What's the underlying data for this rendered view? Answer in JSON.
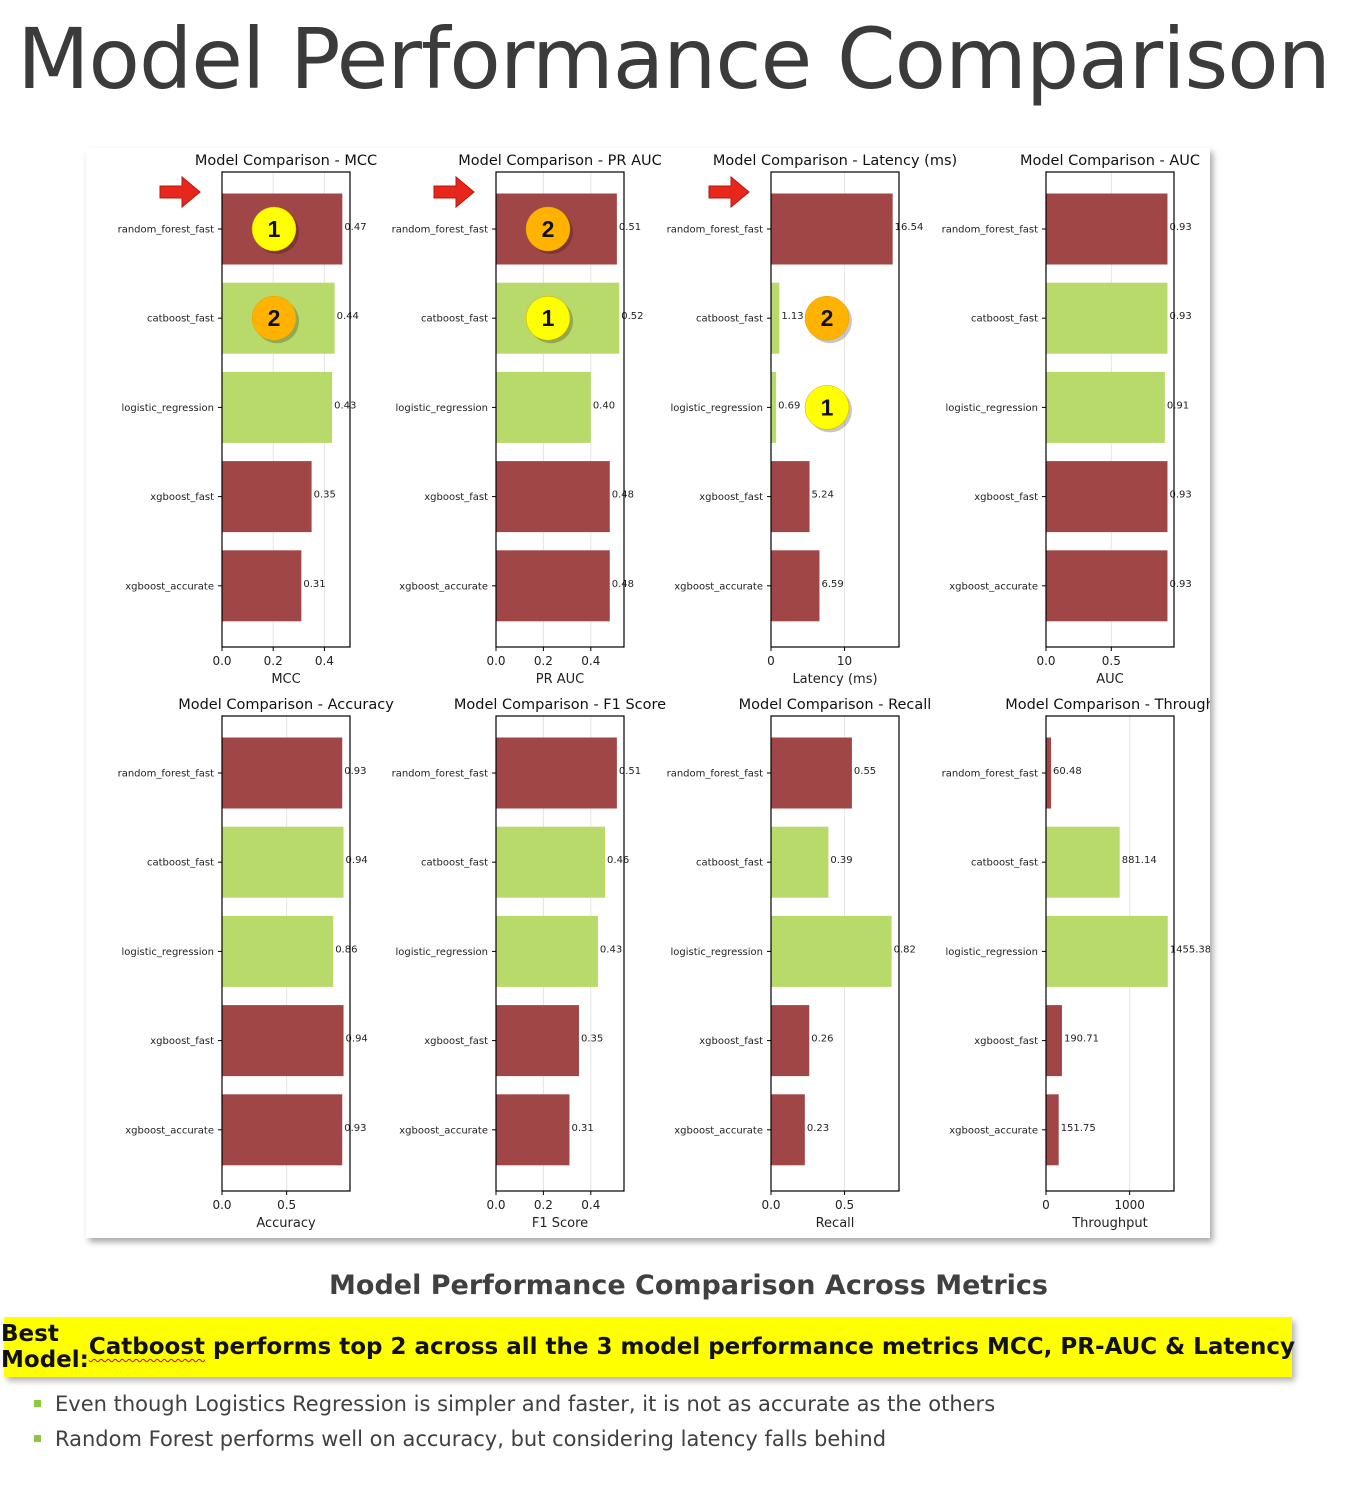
{
  "slide": {
    "title": "Model Performance Comparison",
    "caption": "Model Performance Comparison Across Metrics",
    "banner": {
      "prefix": "Best Model: ",
      "highlight": "Catboost",
      "suffix": " performs top 2 across all the 3 model performance metrics MCC, PR-AUC & Latency"
    },
    "bullets": [
      "Even though Logistics Regression is simpler and faster, it is not as accurate as the others",
      "Random Forest performs well on accuracy, but considering latency falls behind"
    ]
  },
  "colors": {
    "red_bar": "#a14646",
    "green_bar": "#b8da6b",
    "arrow": "#e8261c",
    "badge_yellow": "#ffff00",
    "badge_orange": "#ffb300"
  },
  "chart_data": [
    {
      "type": "bar",
      "orientation": "horizontal",
      "title": "Model Comparison - MCC",
      "xlabel": "MCC",
      "ylabel": "",
      "categories": [
        "random_forest_fast",
        "catboost_fast",
        "logistic_regression",
        "xgboost_fast",
        "xgboost_accurate"
      ],
      "values": [
        0.47,
        0.44,
        0.43,
        0.35,
        0.31
      ],
      "labels": [
        "0.47",
        "0.44",
        "0.43",
        "0.35",
        "0.31"
      ],
      "bar_colors": [
        "red",
        "green",
        "green",
        "red",
        "red"
      ],
      "xlim": [
        0,
        0.5
      ],
      "xticks": [
        0.0,
        0.2,
        0.4
      ],
      "tick_labels": [
        "0.0",
        "0.2",
        "0.4"
      ],
      "grid": true,
      "arrow_on": "random_forest_fast",
      "badges": [
        {
          "category": "random_forest_fast",
          "text": "1",
          "color": "yellow"
        },
        {
          "category": "catboost_fast",
          "text": "2",
          "color": "orange"
        }
      ]
    },
    {
      "type": "bar",
      "orientation": "horizontal",
      "title": "Model Comparison - PR AUC",
      "xlabel": "PR AUC",
      "ylabel": "",
      "categories": [
        "random_forest_fast",
        "catboost_fast",
        "logistic_regression",
        "xgboost_fast",
        "xgboost_accurate"
      ],
      "values": [
        0.51,
        0.52,
        0.4,
        0.48,
        0.48
      ],
      "labels": [
        "0.51",
        "0.52",
        "0.40",
        "0.48",
        "0.48"
      ],
      "bar_colors": [
        "red",
        "green",
        "green",
        "red",
        "red"
      ],
      "xlim": [
        0,
        0.54
      ],
      "xticks": [
        0.0,
        0.2,
        0.4
      ],
      "tick_labels": [
        "0.0",
        "0.2",
        "0.4"
      ],
      "grid": true,
      "arrow_on": "random_forest_fast",
      "badges": [
        {
          "category": "random_forest_fast",
          "text": "2",
          "color": "orange"
        },
        {
          "category": "catboost_fast",
          "text": "1",
          "color": "yellow"
        }
      ]
    },
    {
      "type": "bar",
      "orientation": "horizontal",
      "title": "Model Comparison - Latency (ms)",
      "xlabel": "Latency (ms)",
      "ylabel": "",
      "categories": [
        "random_forest_fast",
        "catboost_fast",
        "logistic_regression",
        "xgboost_fast",
        "xgboost_accurate"
      ],
      "values": [
        16.54,
        1.13,
        0.69,
        5.24,
        6.59
      ],
      "labels": [
        "16.54",
        "1.13",
        "0.69",
        "5.24",
        "6.59"
      ],
      "bar_colors": [
        "red",
        "green",
        "green",
        "red",
        "red"
      ],
      "xlim": [
        0,
        17.4
      ],
      "xticks": [
        0,
        10
      ],
      "tick_labels": [
        "0",
        "10"
      ],
      "grid": true,
      "arrow_on": "random_forest_fast",
      "badges": [
        {
          "category": "catboost_fast",
          "text": "2",
          "color": "orange"
        },
        {
          "category": "logistic_regression",
          "text": "1",
          "color": "yellow"
        }
      ]
    },
    {
      "type": "bar",
      "orientation": "horizontal",
      "title": "Model Comparison - AUC",
      "xlabel": "AUC",
      "ylabel": "",
      "categories": [
        "random_forest_fast",
        "catboost_fast",
        "logistic_regression",
        "xgboost_fast",
        "xgboost_accurate"
      ],
      "values": [
        0.93,
        0.93,
        0.91,
        0.93,
        0.93
      ],
      "labels": [
        "0.93",
        "0.93",
        "0.91",
        "0.93",
        "0.93"
      ],
      "bar_colors": [
        "red",
        "green",
        "green",
        "red",
        "red"
      ],
      "xlim": [
        0,
        0.98
      ],
      "xticks": [
        0.0,
        0.5
      ],
      "tick_labels": [
        "0.0",
        "0.5"
      ],
      "grid": true,
      "badges": []
    },
    {
      "type": "bar",
      "orientation": "horizontal",
      "title": "Model Comparison - Accuracy",
      "xlabel": "Accuracy",
      "ylabel": "",
      "categories": [
        "random_forest_fast",
        "catboost_fast",
        "logistic_regression",
        "xgboost_fast",
        "xgboost_accurate"
      ],
      "values": [
        0.93,
        0.94,
        0.86,
        0.94,
        0.93
      ],
      "labels": [
        "0.93",
        "0.94",
        "0.86",
        "0.94",
        "0.93"
      ],
      "bar_colors": [
        "red",
        "green",
        "green",
        "red",
        "red"
      ],
      "xlim": [
        0,
        0.99
      ],
      "xticks": [
        0.0,
        0.5
      ],
      "tick_labels": [
        "0.0",
        "0.5"
      ],
      "grid": true,
      "badges": []
    },
    {
      "type": "bar",
      "orientation": "horizontal",
      "title": "Model Comparison - F1 Score",
      "xlabel": "F1 Score",
      "ylabel": "",
      "categories": [
        "random_forest_fast",
        "catboost_fast",
        "logistic_regression",
        "xgboost_fast",
        "xgboost_accurate"
      ],
      "values": [
        0.51,
        0.46,
        0.43,
        0.35,
        0.31
      ],
      "labels": [
        "0.51",
        "0.46",
        "0.43",
        "0.35",
        "0.31"
      ],
      "bar_colors": [
        "red",
        "green",
        "green",
        "red",
        "red"
      ],
      "xlim": [
        0,
        0.54
      ],
      "xticks": [
        0.0,
        0.2,
        0.4
      ],
      "tick_labels": [
        "0.0",
        "0.2",
        "0.4"
      ],
      "grid": true,
      "badges": []
    },
    {
      "type": "bar",
      "orientation": "horizontal",
      "title": "Model Comparison - Recall",
      "xlabel": "Recall",
      "ylabel": "",
      "categories": [
        "random_forest_fast",
        "catboost_fast",
        "logistic_regression",
        "xgboost_fast",
        "xgboost_accurate"
      ],
      "values": [
        0.55,
        0.39,
        0.82,
        0.26,
        0.23
      ],
      "labels": [
        "0.55",
        "0.39",
        "0.82",
        "0.26",
        "0.23"
      ],
      "bar_colors": [
        "red",
        "green",
        "green",
        "red",
        "red"
      ],
      "xlim": [
        0,
        0.87
      ],
      "xticks": [
        0.0,
        0.5
      ],
      "tick_labels": [
        "0.0",
        "0.5"
      ],
      "grid": true,
      "badges": []
    },
    {
      "type": "bar",
      "orientation": "horizontal",
      "title": "Model Comparison - Through",
      "xlabel": "Throughput",
      "ylabel": "",
      "categories": [
        "random_forest_fast",
        "catboost_fast",
        "logistic_regression",
        "xgboost_fast",
        "xgboost_accurate"
      ],
      "values": [
        60.48,
        881.14,
        1455.38,
        190.71,
        151.75
      ],
      "labels": [
        "60.48",
        "881.14",
        "1455.38",
        "190.71",
        "151.75"
      ],
      "bar_colors": [
        "red",
        "green",
        "green",
        "red",
        "red"
      ],
      "xlim": [
        0,
        1530
      ],
      "xticks": [
        0,
        1000
      ],
      "tick_labels": [
        "0",
        "1000"
      ],
      "grid": true,
      "badges": []
    }
  ]
}
